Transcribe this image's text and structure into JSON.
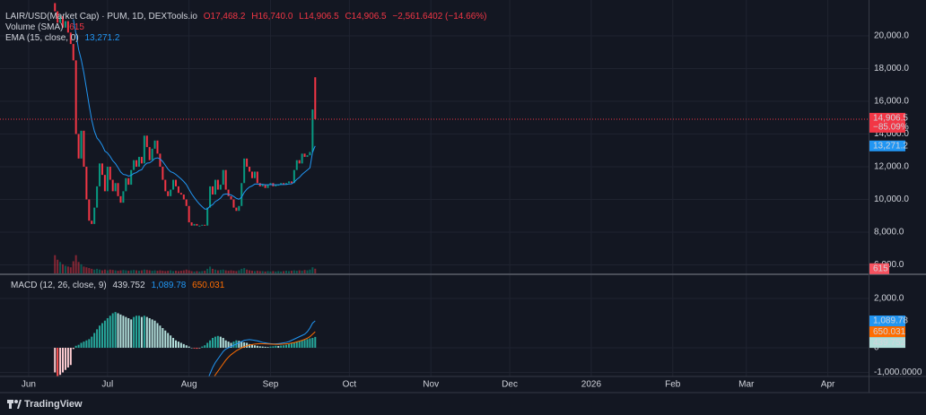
{
  "chart_data": {
    "type": "candlestick",
    "title": "LAIR/USD(Market Cap) · PUM, 1D, DEXTools.io",
    "ohlc": [
      "O17,468.2",
      "H16,740.0",
      "L14,906.5",
      "C14,906.5",
      "−2,561.6402 (−14.66%)"
    ],
    "volume_title": "Volume (SMA)",
    "volume_value": "615",
    "ema_title": "EMA (15, close, 0)",
    "ema_value": "13,271.2",
    "price_label": "14,906.5",
    "change_label": "−85.09%",
    "ema_axis_label": "13,271.2",
    "volume_axis_label": "615",
    "footer": "TradingView",
    "up_color": "#089981",
    "down_color": "#f23645",
    "ema_color": "#2196f3",
    "grid": true,
    "xlim": [
      -10.9,
      319.5
    ],
    "xticks": [
      {
        "value": 0,
        "label": "Jun"
      },
      {
        "value": 30,
        "label": "Jul"
      },
      {
        "value": 61,
        "label": "Aug"
      },
      {
        "value": 92,
        "label": "Sep"
      },
      {
        "value": 122,
        "label": "Oct"
      },
      {
        "value": 153,
        "label": "Nov"
      },
      {
        "value": 183,
        "label": "Dec"
      },
      {
        "value": 214,
        "label": "2026"
      },
      {
        "value": 245,
        "label": "Feb"
      },
      {
        "value": 273,
        "label": "Mar"
      },
      {
        "value": 304,
        "label": "Apr"
      }
    ],
    "ylim": [
      5480,
      22190
    ],
    "yticks": [
      {
        "value": 6000,
        "label": "6,000.0"
      },
      {
        "value": 8000,
        "label": "8,000.0"
      },
      {
        "value": 10000,
        "label": "10,000.0"
      },
      {
        "value": 12000,
        "label": "12,000.0"
      },
      {
        "value": 14000,
        "label": "14,000.0"
      },
      {
        "value": 16000,
        "label": "16,000.0"
      },
      {
        "value": 18000,
        "label": "18,000.0"
      },
      {
        "value": 20000,
        "label": "20,000.0"
      }
    ],
    "vlim": [
      0,
      36000
    ],
    "x": [
      10,
      11,
      12,
      13,
      14,
      15,
      16,
      17,
      18,
      19,
      20,
      21,
      22,
      23,
      24,
      25,
      26,
      27,
      28,
      29,
      30,
      31,
      32,
      33,
      34,
      35,
      36,
      37,
      38,
      39,
      40,
      41,
      42,
      43,
      44,
      45,
      46,
      47,
      48,
      49,
      50,
      51,
      52,
      53,
      54,
      55,
      56,
      57,
      58,
      59,
      60,
      61,
      62,
      63,
      64,
      65,
      66,
      67,
      68,
      69,
      70,
      71,
      72,
      73,
      74,
      75,
      76,
      77,
      78,
      79,
      80,
      81,
      82,
      83,
      84,
      85,
      86,
      87,
      88,
      89,
      90,
      91,
      92,
      93,
      94,
      95,
      96,
      97,
      98,
      99,
      100,
      101,
      102,
      103,
      104,
      105,
      106,
      107,
      108,
      109
    ],
    "open": [
      22000,
      21500,
      20800,
      21200,
      20500,
      20900,
      20200,
      19500,
      18500,
      14000,
      12500,
      14200,
      12000,
      10000,
      8700,
      8500,
      9500,
      10800,
      12200,
      11500,
      10500,
      12000,
      11200,
      10500,
      11000,
      10200,
      9800,
      10500,
      11300,
      10900,
      11800,
      12400,
      12000,
      12600,
      12200,
      13900,
      13200,
      12400,
      13100,
      13600,
      12800,
      12000,
      11200,
      10500,
      10200,
      10600,
      11200,
      10800,
      10400,
      10300,
      10000,
      9600,
      8600,
      8400,
      8500,
      8400,
      8400,
      8450,
      8400,
      9500,
      10800,
      10300,
      11200,
      10600,
      10900,
      11800,
      10600,
      10200,
      10000,
      9500,
      9300,
      9600,
      11000,
      12500,
      12000,
      11700,
      11300,
      11700,
      11000,
      10800,
      10900,
      10700,
      10900,
      11000,
      10800,
      10900,
      10900,
      11000,
      10900,
      11000,
      11100,
      11000,
      11800,
      12400,
      12200,
      12800,
      12600,
      12700,
      12900,
      17468.2
    ],
    "close": [
      21500,
      20800,
      21200,
      20500,
      20900,
      20200,
      19500,
      18500,
      14000,
      12500,
      14200,
      12000,
      10000,
      8700,
      8500,
      9500,
      10800,
      12200,
      11500,
      10500,
      12000,
      11200,
      10500,
      11000,
      10200,
      9800,
      10500,
      11300,
      10900,
      11800,
      12400,
      12000,
      12600,
      12200,
      13900,
      13200,
      12400,
      13100,
      13600,
      12800,
      12000,
      11200,
      10500,
      10200,
      10600,
      11200,
      10800,
      10400,
      10300,
      10000,
      9600,
      8600,
      8400,
      8500,
      8400,
      8400,
      8450,
      8400,
      9500,
      10800,
      10300,
      11200,
      10600,
      10900,
      11800,
      10600,
      10200,
      10000,
      9500,
      9300,
      9600,
      11000,
      12500,
      12000,
      11700,
      11300,
      11700,
      11000,
      10800,
      10900,
      10700,
      10900,
      11000,
      10800,
      10900,
      10900,
      11000,
      10900,
      11000,
      11100,
      11000,
      11800,
      12400,
      12200,
      12800,
      12600,
      12700,
      12900,
      15500,
      14906.5
    ],
    "volume": [
      2400,
      1800,
      1500,
      1200,
      1000,
      900,
      800,
      1600,
      2400,
      1500,
      1200,
      900,
      800,
      700,
      600,
      500,
      600,
      500,
      400,
      500,
      400,
      500,
      450,
      400,
      350,
      400,
      450,
      400,
      350,
      400,
      450,
      400,
      350,
      400,
      500,
      450,
      400,
      350,
      400,
      350,
      400,
      350,
      300,
      350,
      400,
      300,
      350,
      300,
      350,
      400,
      500,
      400,
      300,
      250,
      300,
      250,
      300,
      350,
      600,
      900,
      600,
      500,
      400,
      450,
      500,
      400,
      350,
      400,
      350,
      300,
      400,
      600,
      700,
      500,
      400,
      350,
      300,
      350,
      300,
      300,
      250,
      300,
      250,
      300,
      250,
      300,
      250,
      300,
      350,
      300,
      350,
      400,
      350,
      400,
      350,
      450,
      400,
      500,
      800,
      615
    ],
    "ema": [
      null,
      null,
      null,
      null,
      null,
      null,
      null,
      21000,
      20125,
      19172,
      18550,
      17731,
      16765,
      15757,
      14850,
      14181,
      13758,
      13563,
      13305,
      12954,
      12835,
      12631,
      12365,
      12194,
      11945,
      11677,
      11530,
      11501,
      11426,
      11473,
      11589,
      11640,
      11760,
      11815,
      12076,
      12217,
      12240,
      12348,
      12505,
      12542,
      12474,
      12315,
      12088,
      11852,
      11695,
      11633,
      11529,
      11388,
      11252,
      11095,
      10908,
      10619,
      10342,
      10112,
      9898,
      9711,
      9553,
      9409,
      9420,
      9593,
      9681,
      9871,
      9962,
      10079,
      10294,
      10332,
      10315,
      10276,
      10179,
      10069,
      10010,
      10134,
      10430,
      10626,
      10760,
      10828,
      10937,
      10945,
      10927,
      10924,
      10896,
      10896,
      10909,
      10895,
      10896,
      10896,
      10909,
      10908,
      10920,
      10943,
      10950,
      11056,
      11224,
      11346,
      11528,
      11662,
      11792,
      11931,
      12900,
      13271.2
    ],
    "macd": {
      "type": "macd",
      "title": "MACD (12, 26, close, 9)",
      "values_text": [
        "439.752",
        "1,089.78",
        "650.031"
      ],
      "macd_color": "#2196f3",
      "signal_color": "#ff6d00",
      "ylim": [
        -1164,
        2909
      ],
      "yticks": [
        {
          "value": -1000,
          "label": "-1,000.0000"
        },
        0,
        {
          "value": 2000,
          "label": "2,000.0"
        }
      ],
      "histogram": [
        -1000,
        -1200,
        -1100,
        -1000,
        -900,
        -800,
        -700,
        -50,
        80,
        120,
        200,
        250,
        300,
        350,
        450,
        600,
        750,
        900,
        1000,
        1100,
        1200,
        1300,
        1400,
        1450,
        1400,
        1350,
        1300,
        1250,
        1200,
        1150,
        1250,
        1300,
        1300,
        1250,
        1300,
        1250,
        1200,
        1150,
        1100,
        1000,
        900,
        800,
        700,
        600,
        500,
        400,
        300,
        250,
        200,
        150,
        100,
        50,
        0,
        -30,
        -40,
        -20,
        50,
        100,
        200,
        300,
        400,
        450,
        480,
        450,
        400,
        300,
        250,
        200,
        250,
        300,
        280,
        250,
        220,
        200,
        150,
        120,
        100,
        80,
        60,
        50,
        40,
        30,
        50,
        60,
        80,
        70,
        90,
        100,
        120,
        150,
        180,
        200,
        250,
        280,
        300,
        320,
        350,
        380,
        400,
        439.752
      ],
      "macd": [
        null,
        null,
        null,
        null,
        null,
        null,
        null,
        null,
        null,
        null,
        null,
        null,
        null,
        null,
        null,
        null,
        null,
        null,
        null,
        null,
        null,
        null,
        null,
        null,
        null,
        null,
        null,
        null,
        null,
        null,
        null,
        null,
        null,
        null,
        null,
        null,
        null,
        null,
        null,
        null,
        null,
        null,
        null,
        null,
        null,
        null,
        null,
        null,
        null,
        null,
        null,
        null,
        null,
        null,
        null,
        null,
        null,
        null,
        -1300,
        -1050,
        -800,
        -600,
        -450,
        -300,
        -150,
        -50,
        0,
        50,
        100,
        150,
        200,
        250,
        300,
        320,
        330,
        320,
        300,
        280,
        250,
        220,
        200,
        180,
        170,
        160,
        160,
        170,
        180,
        200,
        220,
        250,
        300,
        350,
        400,
        450,
        500,
        550,
        650,
        800,
        1000,
        1089.78
      ],
      "signal": [
        null,
        null,
        null,
        null,
        null,
        null,
        null,
        null,
        null,
        null,
        null,
        null,
        null,
        null,
        null,
        null,
        null,
        null,
        null,
        null,
        null,
        null,
        null,
        null,
        null,
        null,
        null,
        null,
        null,
        null,
        null,
        null,
        null,
        null,
        null,
        null,
        null,
        null,
        null,
        null,
        null,
        null,
        null,
        null,
        null,
        null,
        null,
        null,
        null,
        null,
        null,
        null,
        null,
        null,
        null,
        null,
        null,
        null,
        null,
        null,
        -1300,
        -1100,
        -950,
        -800,
        -650,
        -500,
        -380,
        -280,
        -200,
        -120,
        -60,
        0,
        40,
        80,
        110,
        130,
        150,
        160,
        165,
        165,
        160,
        155,
        150,
        145,
        140,
        140,
        145,
        150,
        160,
        170,
        190,
        210,
        240,
        270,
        300,
        340,
        390,
        450,
        550,
        650.031
      ]
    }
  }
}
